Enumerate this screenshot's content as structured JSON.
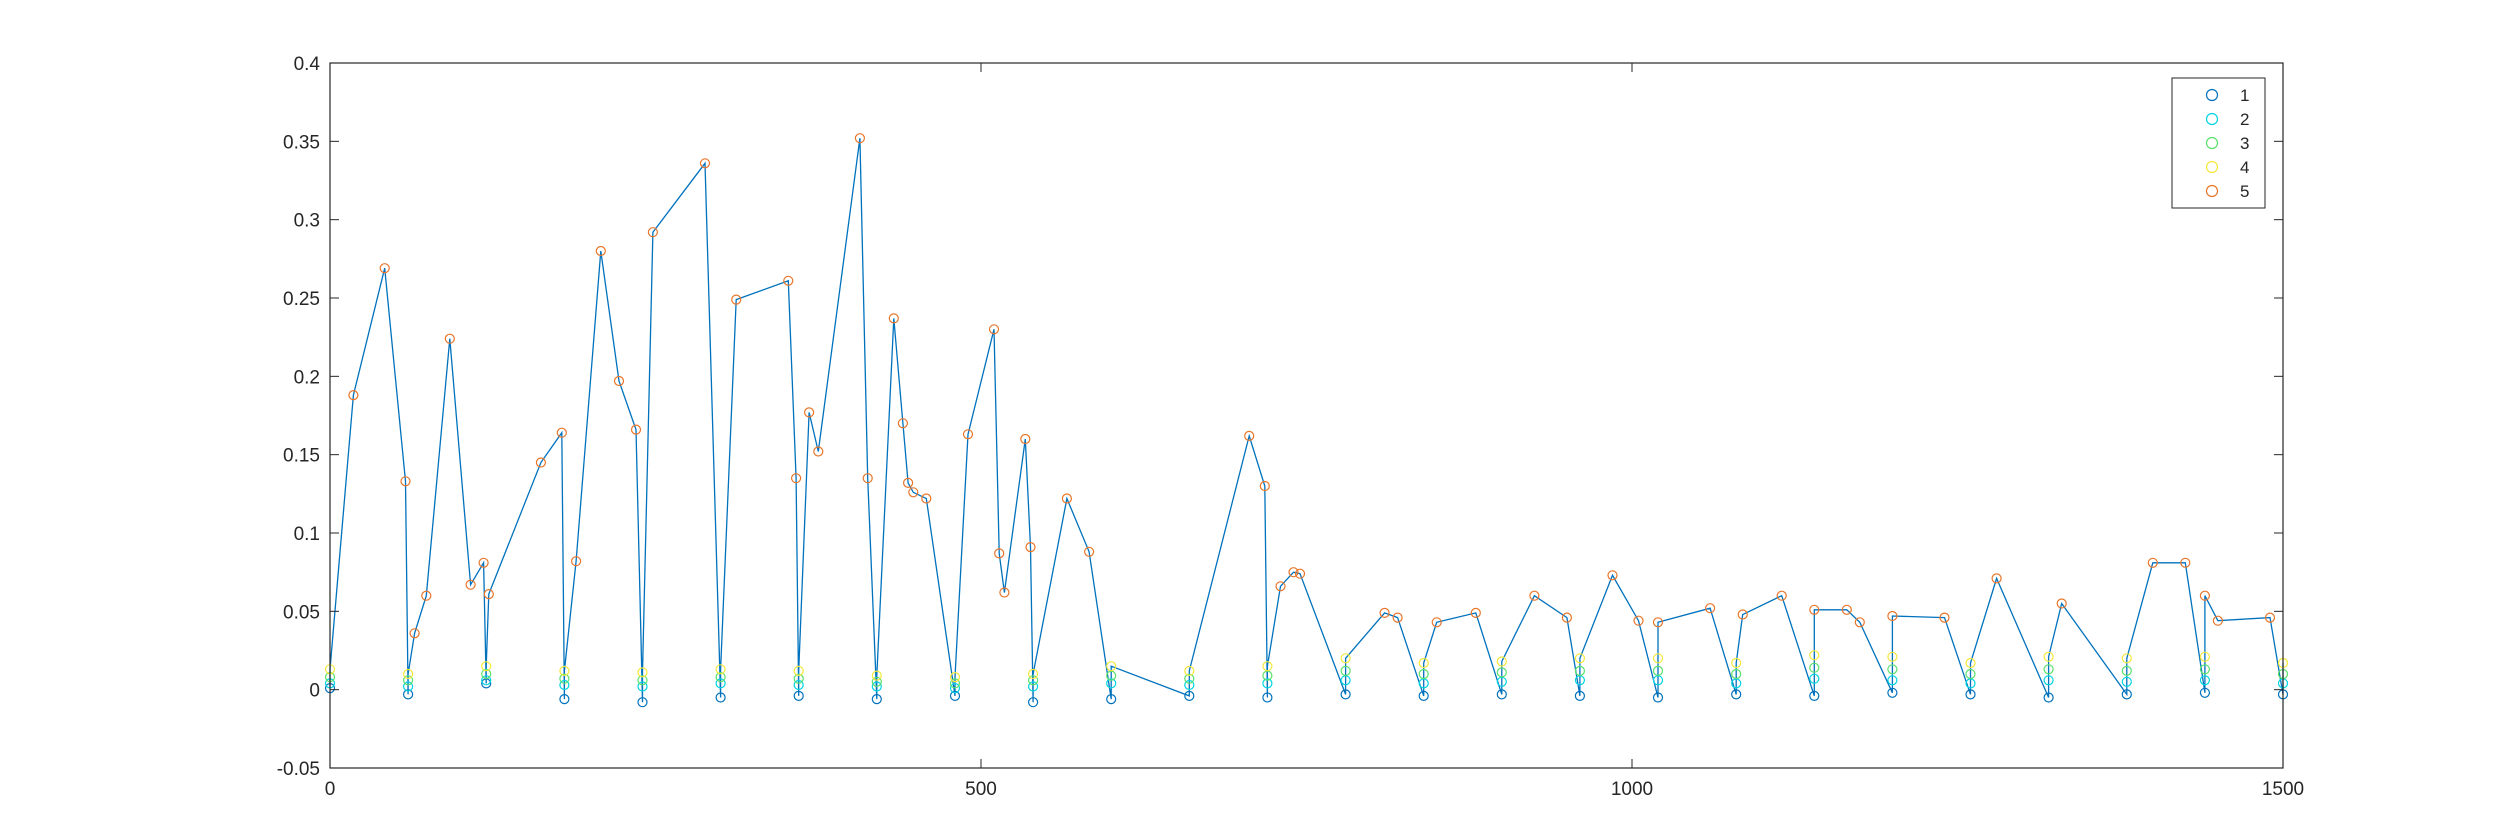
{
  "chart_data": {
    "type": "scatter",
    "xlim": [
      0,
      1500
    ],
    "ylim": [
      -0.05,
      0.4
    ],
    "xticks": [
      0,
      500,
      1000,
      1500
    ],
    "xtick_labels": [
      "0",
      "500",
      "1000",
      "1500"
    ],
    "yticks": [
      -0.05,
      0,
      0.05,
      0.1,
      0.15,
      0.2,
      0.25,
      0.3,
      0.35,
      0.4
    ],
    "ytick_labels": [
      "-0.05",
      "0",
      "0.05",
      "0.1",
      "0.15",
      "0.2",
      "0.25",
      "0.3",
      "0.35",
      "0.4"
    ],
    "grid": false,
    "legend_position": "top-right",
    "line_color": "#0072BD",
    "legend": [
      {
        "label": "1",
        "color": "#0072BD"
      },
      {
        "label": "2",
        "color": "#00D4E0"
      },
      {
        "label": "3",
        "color": "#5BE06A"
      },
      {
        "label": "4",
        "color": "#F2E83A"
      },
      {
        "label": "5",
        "color": "#E8752A"
      }
    ],
    "series": [
      {
        "name": "1",
        "x": [
          0,
          60,
          120,
          180,
          240,
          300,
          360,
          420,
          480,
          540,
          600,
          660,
          720,
          780,
          840,
          900,
          960,
          1020,
          1080,
          1140,
          1200,
          1260,
          1320,
          1380,
          1440,
          1500
        ],
        "y": [
          0.001,
          -0.003,
          0.004,
          -0.006,
          -0.008,
          -0.005,
          -0.004,
          -0.006,
          -0.004,
          -0.008,
          -0.006,
          -0.004,
          -0.005,
          -0.003,
          -0.004,
          -0.003,
          -0.004,
          -0.005,
          -0.003,
          -0.004,
          -0.002,
          -0.003,
          -0.005,
          -0.003,
          -0.002,
          -0.003
        ]
      },
      {
        "name": "2",
        "x": [
          0,
          60,
          120,
          180,
          240,
          300,
          360,
          420,
          480,
          540,
          600,
          660,
          720,
          780,
          840,
          900,
          960,
          1020,
          1080,
          1140,
          1200,
          1260,
          1320,
          1380,
          1440,
          1500
        ],
        "y": [
          0.004,
          0.002,
          0.006,
          0.003,
          0.002,
          0.004,
          0.003,
          0.002,
          0.001,
          0.002,
          0.004,
          0.003,
          0.004,
          0.006,
          0.004,
          0.005,
          0.006,
          0.006,
          0.004,
          0.007,
          0.006,
          0.004,
          0.006,
          0.005,
          0.006,
          0.004
        ]
      },
      {
        "name": "3",
        "x": [
          0,
          60,
          120,
          180,
          240,
          300,
          360,
          420,
          480,
          540,
          600,
          660,
          720,
          780,
          840,
          900,
          960,
          1020,
          1080,
          1140,
          1200,
          1260,
          1320,
          1380,
          1440,
          1500
        ],
        "y": [
          0.008,
          0.006,
          0.01,
          0.007,
          0.006,
          0.008,
          0.007,
          0.005,
          0.004,
          0.006,
          0.009,
          0.007,
          0.009,
          0.012,
          0.01,
          0.011,
          0.012,
          0.012,
          0.01,
          0.014,
          0.013,
          0.01,
          0.013,
          0.012,
          0.013,
          0.01
        ]
      },
      {
        "name": "4",
        "x": [
          0,
          60,
          120,
          180,
          240,
          300,
          360,
          420,
          480,
          540,
          600,
          660,
          720,
          780,
          840,
          900,
          960,
          1020,
          1080,
          1140,
          1200,
          1260,
          1320,
          1380,
          1440,
          1500
        ],
        "y": [
          0.013,
          0.01,
          0.015,
          0.012,
          0.011,
          0.013,
          0.012,
          0.009,
          0.008,
          0.01,
          0.015,
          0.012,
          0.015,
          0.02,
          0.017,
          0.018,
          0.02,
          0.02,
          0.017,
          0.022,
          0.021,
          0.017,
          0.021,
          0.02,
          0.021,
          0.017
        ]
      },
      {
        "name": "5",
        "x": [
          18,
          42,
          58,
          65,
          74,
          92,
          108,
          118,
          122,
          162,
          178,
          189,
          208,
          222,
          235,
          248,
          288,
          312,
          352,
          358,
          368,
          375,
          407,
          413,
          433,
          440,
          444,
          448,
          458,
          490,
          510,
          514,
          518,
          534,
          538,
          566,
          583,
          706,
          718,
          730,
          740,
          745,
          810,
          820,
          850,
          880,
          925,
          950,
          985,
          1005,
          1020,
          1060,
          1085,
          1115,
          1140,
          1165,
          1175,
          1200,
          1240,
          1280,
          1330,
          1400,
          1425,
          1440,
          1450,
          1490
        ],
        "y": [
          0.188,
          0.269,
          0.133,
          0.036,
          0.06,
          0.224,
          0.067,
          0.081,
          0.061,
          0.145,
          0.164,
          0.082,
          0.28,
          0.197,
          0.166,
          0.292,
          0.336,
          0.249,
          0.261,
          0.135,
          0.177,
          0.152,
          0.352,
          0.135,
          0.237,
          0.17,
          0.132,
          0.126,
          0.122,
          0.163,
          0.23,
          0.087,
          0.062,
          0.16,
          0.091,
          0.122,
          0.088,
          0.162,
          0.13,
          0.066,
          0.075,
          0.074,
          0.049,
          0.046,
          0.043,
          0.049,
          0.06,
          0.046,
          0.073,
          0.044,
          0.043,
          0.052,
          0.048,
          0.06,
          0.051,
          0.051,
          0.043,
          0.047,
          0.046,
          0.071,
          0.055,
          0.081,
          0.081,
          0.06,
          0.044,
          0.046
        ]
      }
    ]
  }
}
